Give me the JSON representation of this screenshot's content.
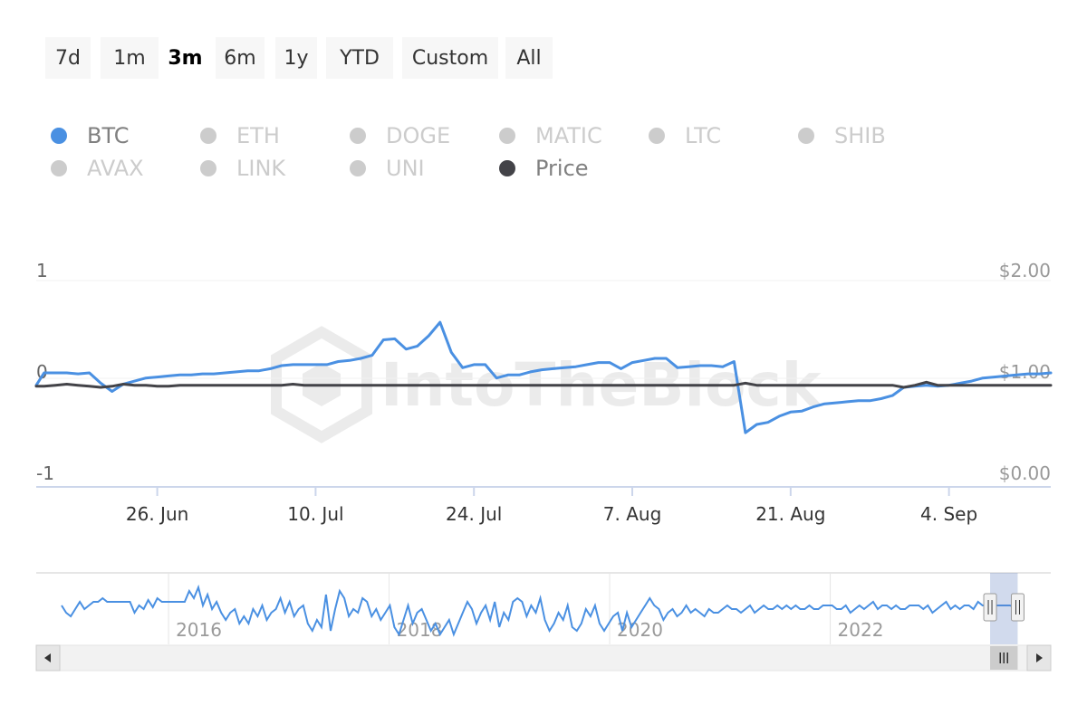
{
  "range_selector": {
    "buttons": [
      {
        "label": "7d",
        "active": false
      },
      {
        "label": "1m",
        "active": false
      },
      {
        "label": "3m",
        "active": true
      },
      {
        "label": "6m",
        "active": false
      },
      {
        "label": "1y",
        "active": false
      },
      {
        "label": "YTD",
        "active": false
      },
      {
        "label": "Custom",
        "active": false
      },
      {
        "label": "All",
        "active": false
      }
    ]
  },
  "legend": {
    "items": [
      {
        "label": "BTC",
        "color": "#4a90e2",
        "visible": true
      },
      {
        "label": "ETH",
        "color": "#cccccc",
        "visible": false
      },
      {
        "label": "DOGE",
        "color": "#cccccc",
        "visible": false
      },
      {
        "label": "MATIC",
        "color": "#cccccc",
        "visible": false
      },
      {
        "label": "LTC",
        "color": "#cccccc",
        "visible": false
      },
      {
        "label": "SHIB",
        "color": "#cccccc",
        "visible": false
      },
      {
        "label": "AVAX",
        "color": "#cccccc",
        "visible": false
      },
      {
        "label": "LINK",
        "color": "#cccccc",
        "visible": false
      },
      {
        "label": "UNI",
        "color": "#cccccc",
        "visible": false
      },
      {
        "label": "Price",
        "color": "#434348",
        "visible": true
      }
    ]
  },
  "watermark": "IntoTheBlock",
  "chart_data": {
    "type": "line",
    "x_tick_labels": [
      "26. Jun",
      "10. Jul",
      "24. Jul",
      "7. Aug",
      "21. Aug",
      "4. Sep"
    ],
    "x_tick_days": [
      10,
      24,
      38,
      52,
      66,
      80
    ],
    "x_range_days": [
      -0.7,
      89
    ],
    "y_left": {
      "ticks": [
        "1",
        "0",
        "-1"
      ],
      "range": [
        -1,
        1
      ]
    },
    "y_right": {
      "ticks": [
        "$2.00",
        "$1.00",
        "$0.00"
      ],
      "range": [
        0,
        2
      ]
    },
    "grid": true,
    "legend_position": "top",
    "series": [
      {
        "name": "BTC",
        "axis": "left",
        "color": "#4a90e2",
        "x": [
          -0.7,
          0,
          1,
          2,
          3,
          4,
          5,
          6,
          7,
          8,
          9,
          10,
          11,
          12,
          13,
          14,
          15,
          16,
          17,
          18,
          19,
          20,
          21,
          22,
          23,
          24,
          25,
          26,
          27,
          28,
          29,
          30,
          31,
          32,
          33,
          34,
          35,
          36,
          37,
          38,
          39,
          40,
          41,
          42,
          43,
          44,
          45,
          46,
          47,
          48,
          49,
          50,
          51,
          52,
          53,
          54,
          55,
          56,
          57,
          58,
          59,
          60,
          61,
          62,
          63,
          64,
          65,
          66,
          67,
          68,
          69,
          70,
          71,
          72,
          73,
          74,
          75,
          76,
          77,
          78,
          79,
          80,
          81,
          82,
          83,
          84,
          85,
          86,
          87,
          88,
          89
        ],
        "values": [
          -0.12,
          0.0,
          0.0,
          0.0,
          -0.01,
          0.0,
          -0.1,
          -0.18,
          -0.11,
          -0.08,
          -0.05,
          -0.04,
          -0.03,
          -0.02,
          -0.02,
          -0.01,
          -0.01,
          0.0,
          0.01,
          0.02,
          0.02,
          0.04,
          0.07,
          0.08,
          0.08,
          0.08,
          0.08,
          0.11,
          0.12,
          0.14,
          0.17,
          0.32,
          0.33,
          0.23,
          0.26,
          0.36,
          0.49,
          0.2,
          0.05,
          0.08,
          0.08,
          -0.05,
          -0.02,
          -0.02,
          0.01,
          0.03,
          0.04,
          0.05,
          0.06,
          0.08,
          0.1,
          0.1,
          0.04,
          0.1,
          0.12,
          0.14,
          0.14,
          0.05,
          0.06,
          0.07,
          0.07,
          0.06,
          0.11,
          -0.58,
          -0.5,
          -0.48,
          -0.42,
          -0.38,
          -0.37,
          -0.33,
          -0.3,
          -0.29,
          -0.28,
          -0.27,
          -0.27,
          -0.25,
          -0.22,
          -0.14,
          -0.13,
          -0.12,
          -0.13,
          -0.12,
          -0.1,
          -0.08,
          -0.05,
          -0.04,
          -0.03,
          -0.02,
          -0.01,
          -0.01,
          0.0
        ]
      },
      {
        "name": "Price",
        "axis": "right",
        "color": "#434348",
        "x": [
          -0.7,
          0,
          1,
          2,
          3,
          4,
          5,
          6,
          7,
          8,
          9,
          10,
          11,
          12,
          13,
          14,
          15,
          16,
          17,
          18,
          19,
          20,
          21,
          22,
          23,
          24,
          25,
          26,
          27,
          28,
          29,
          30,
          31,
          32,
          33,
          34,
          35,
          36,
          37,
          38,
          39,
          40,
          41,
          42,
          43,
          44,
          45,
          46,
          47,
          48,
          49,
          50,
          51,
          52,
          53,
          54,
          55,
          56,
          57,
          58,
          59,
          60,
          61,
          62,
          63,
          64,
          65,
          66,
          67,
          68,
          69,
          70,
          71,
          72,
          73,
          74,
          75,
          76,
          77,
          78,
          79,
          80,
          81,
          82,
          83,
          84,
          85,
          86,
          87,
          88,
          89
        ],
        "values": [
          0.87,
          0.87,
          0.88,
          0.89,
          0.88,
          0.87,
          0.86,
          0.87,
          0.89,
          0.88,
          0.88,
          0.87,
          0.87,
          0.88,
          0.88,
          0.88,
          0.88,
          0.88,
          0.88,
          0.88,
          0.88,
          0.88,
          0.88,
          0.89,
          0.88,
          0.88,
          0.88,
          0.88,
          0.88,
          0.88,
          0.88,
          0.88,
          0.88,
          0.88,
          0.88,
          0.88,
          0.88,
          0.88,
          0.88,
          0.88,
          0.88,
          0.88,
          0.88,
          0.88,
          0.88,
          0.88,
          0.88,
          0.88,
          0.88,
          0.88,
          0.88,
          0.88,
          0.88,
          0.88,
          0.88,
          0.88,
          0.88,
          0.88,
          0.88,
          0.88,
          0.88,
          0.88,
          0.88,
          0.9,
          0.88,
          0.88,
          0.88,
          0.88,
          0.88,
          0.88,
          0.88,
          0.88,
          0.88,
          0.88,
          0.88,
          0.88,
          0.88,
          0.86,
          0.88,
          0.91,
          0.88,
          0.88,
          0.88,
          0.88,
          0.88,
          0.88,
          0.88,
          0.88,
          0.88,
          0.88,
          0.88
        ]
      }
    ]
  },
  "navigator": {
    "year_labels": [
      "2016",
      "2018",
      "2020",
      "2022"
    ],
    "year_positions": [
      2016,
      2018,
      2020,
      2022
    ],
    "x_range": [
      2014.8,
      2024.0
    ],
    "selection": [
      2023.45,
      2023.7
    ],
    "values": [
      -0.1,
      -0.3,
      -0.4,
      -0.2,
      0.0,
      -0.2,
      -0.1,
      0.0,
      0.0,
      0.1,
      0.0,
      0.0,
      0.0,
      0.0,
      0.0,
      0.0,
      -0.3,
      -0.1,
      -0.2,
      0.05,
      -0.15,
      0.1,
      0.0,
      0.0,
      0.0,
      0.0,
      0.0,
      0.0,
      0.3,
      0.1,
      0.4,
      -0.1,
      0.2,
      -0.2,
      0.0,
      -0.3,
      -0.5,
      -0.3,
      -0.2,
      -0.6,
      -0.4,
      -0.6,
      -0.2,
      -0.4,
      -0.1,
      -0.5,
      -0.3,
      -0.2,
      0.1,
      -0.3,
      0.0,
      -0.4,
      -0.2,
      -0.1,
      -0.6,
      -0.8,
      -0.5,
      -0.7,
      0.2,
      -0.8,
      -0.2,
      0.3,
      0.1,
      -0.4,
      -0.2,
      -0.3,
      0.1,
      0.0,
      -0.4,
      -0.2,
      -0.5,
      -0.3,
      -0.1,
      -0.7,
      -0.9,
      -0.5,
      -0.1,
      -0.6,
      -0.3,
      -0.2,
      -0.5,
      -0.8,
      -0.6,
      -0.9,
      -0.7,
      -0.5,
      -0.9,
      -0.6,
      -0.3,
      0.0,
      -0.2,
      -0.6,
      -0.3,
      -0.1,
      -0.5,
      0.0,
      -0.7,
      -0.3,
      -0.5,
      0.0,
      0.1,
      0.0,
      -0.4,
      -0.1,
      -0.3,
      0.1,
      -0.5,
      -0.8,
      -0.6,
      -0.3,
      -0.5,
      -0.1,
      -0.7,
      -0.8,
      -0.6,
      -0.2,
      -0.4,
      -0.1,
      -0.6,
      -0.8,
      -0.6,
      -0.4,
      -0.3,
      -0.8,
      -0.3,
      -0.7,
      -0.5,
      -0.3,
      -0.1,
      0.1,
      -0.1,
      -0.2,
      -0.5,
      -0.3,
      -0.2,
      -0.4,
      -0.3,
      -0.1,
      -0.3,
      -0.2,
      -0.3,
      -0.4,
      -0.2,
      -0.3,
      -0.3,
      -0.2,
      -0.1,
      -0.2,
      -0.2,
      -0.3,
      -0.2,
      -0.1,
      -0.3,
      -0.2,
      -0.1,
      -0.2,
      -0.2,
      -0.1,
      -0.2,
      -0.1,
      -0.2,
      -0.1,
      -0.2,
      -0.2,
      -0.1,
      -0.2,
      -0.2,
      -0.1,
      -0.1,
      -0.1,
      -0.2,
      -0.2,
      -0.1,
      -0.3,
      -0.2,
      -0.1,
      -0.2,
      -0.1,
      0.0,
      -0.2,
      -0.1,
      -0.1,
      -0.2,
      -0.1,
      -0.2,
      -0.2,
      -0.1,
      -0.1,
      -0.1,
      -0.2,
      -0.1,
      -0.3,
      -0.2,
      -0.1,
      0.0,
      -0.2,
      -0.1,
      -0.2,
      -0.1,
      -0.1,
      -0.2,
      0.0,
      -0.1,
      -0.1,
      -0.1,
      -0.1,
      -0.1,
      -0.1,
      -0.1,
      -0.15,
      -0.2
    ]
  },
  "scrollbar": {
    "left_arrow": "◀",
    "right_arrow": "▶",
    "grip": "III",
    "handle_grip": "||"
  }
}
